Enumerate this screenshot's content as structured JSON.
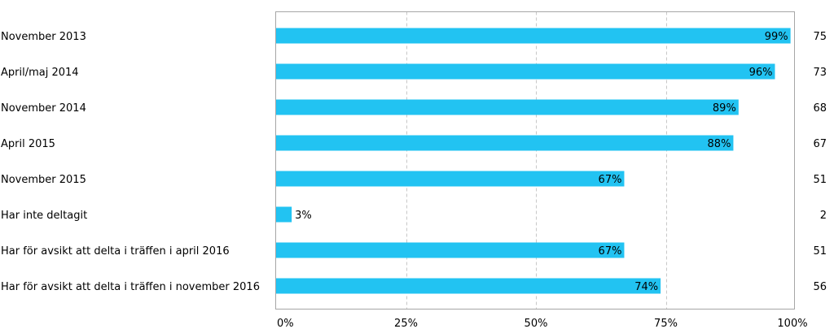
{
  "chart_data": {
    "type": "bar",
    "orientation": "horizontal",
    "categories": [
      "November 2013",
      "April/maj 2014",
      "November 2014",
      "April 2015",
      "November 2015",
      "Har inte deltagit",
      "Har för avsikt att delta i träffen i april 2016",
      "Har för avsikt att delta i träffen i november 2016"
    ],
    "values": [
      99,
      96,
      89,
      88,
      67,
      3,
      67,
      74
    ],
    "value_labels": [
      "99%",
      "96%",
      "89%",
      "88%",
      "67%",
      "3%",
      "67%",
      "74%"
    ],
    "counts": [
      "75",
      "73",
      "68",
      "67",
      "51",
      "2",
      "51",
      "56"
    ],
    "xlim": [
      0,
      100
    ],
    "xticks": [
      0,
      25,
      50,
      75,
      100
    ],
    "xtick_labels": [
      "0%",
      "25%",
      "50%",
      "75%",
      "100%"
    ],
    "grid": "vertical-dashed",
    "title": "",
    "xlabel": "",
    "ylabel": ""
  },
  "colors": {
    "bar": "#22c3f2",
    "grid": "#c8c8c8",
    "frame": "#a6a6a6"
  }
}
